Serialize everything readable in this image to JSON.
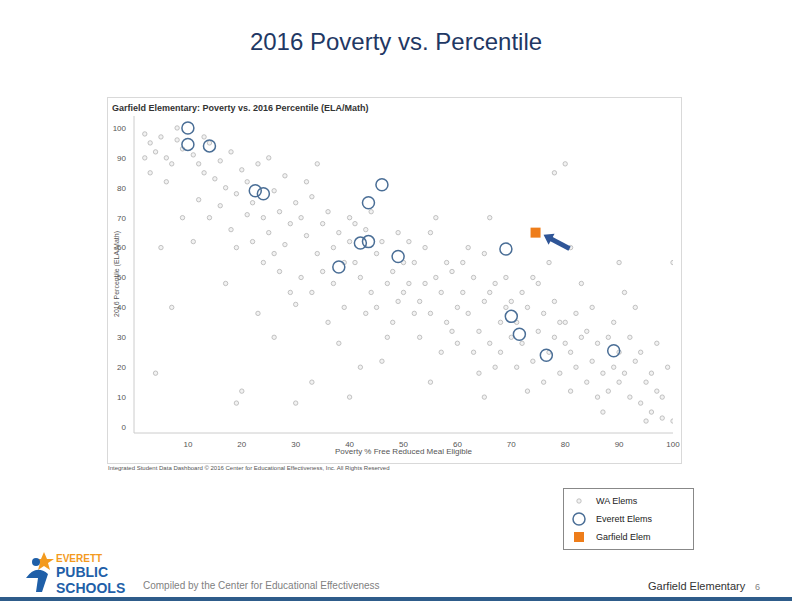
{
  "slide_title": "2016 Poverty vs. Percentile",
  "chart_data": {
    "type": "scatter",
    "title": "Garfield Elementary: Poverty vs. 2016 Percentile (ELA/Math)",
    "x_label": "Poverty % Free Reduced Meal Eligible",
    "y_label": "2016 Percentile (ELA/Math)",
    "source": "Integrated Student Data Dashboard © 2016 Center for Educational Effectiveness, Inc. All Rights Reserved",
    "xlim": [
      0,
      100
    ],
    "xticks": [
      10,
      20,
      30,
      40,
      50,
      60,
      70,
      80,
      90,
      100
    ],
    "ylim": [
      -2,
      104
    ],
    "yticks": [
      0,
      10,
      20,
      30,
      40,
      50,
      60,
      70,
      80,
      90,
      100
    ],
    "grid": false,
    "legend": "lower right",
    "series": [
      {
        "name": "WA Elems",
        "color": "#b4b4b4",
        "marker": "dot",
        "x": [
          2,
          3,
          4,
          5,
          6,
          7,
          8,
          9,
          3,
          6,
          8,
          2,
          5,
          9,
          7,
          4,
          11,
          12,
          13,
          14,
          15,
          16,
          17,
          18,
          19,
          12,
          14,
          16,
          18,
          20,
          13,
          19,
          11,
          17,
          20,
          19,
          21,
          22,
          23,
          24,
          25,
          26,
          27,
          28,
          29,
          30,
          22,
          24,
          26,
          28,
          21,
          25,
          27,
          29,
          23,
          26,
          30,
          31,
          32,
          33,
          34,
          35,
          36,
          37,
          38,
          39,
          40,
          31,
          33,
          35,
          37,
          39,
          32,
          34,
          36,
          38,
          40,
          33,
          30,
          41,
          42,
          43,
          44,
          45,
          46,
          47,
          48,
          49,
          50,
          41,
          43,
          45,
          47,
          49,
          44,
          46,
          48,
          50,
          42,
          40,
          51,
          52,
          53,
          54,
          55,
          56,
          57,
          58,
          59,
          60,
          51,
          53,
          55,
          57,
          59,
          52,
          54,
          56,
          58,
          60,
          55,
          61,
          62,
          63,
          64,
          65,
          66,
          67,
          68,
          69,
          70,
          61,
          63,
          65,
          67,
          69,
          62,
          64,
          66,
          68,
          70,
          66,
          65,
          71,
          72,
          73,
          74,
          75,
          76,
          77,
          78,
          79,
          80,
          72,
          74,
          76,
          78,
          80,
          71,
          73,
          75,
          77,
          79,
          78,
          80,
          81,
          81,
          82,
          83,
          84,
          85,
          86,
          87,
          88,
          89,
          90,
          82,
          84,
          86,
          88,
          90,
          83,
          85,
          87,
          89,
          81,
          90,
          91,
          92,
          93,
          94,
          95,
          96,
          97,
          98,
          99,
          100,
          92,
          94,
          96,
          98,
          93,
          95,
          97,
          100,
          91
        ],
        "values": [
          98,
          95,
          92,
          97,
          90,
          88,
          96,
          93,
          85,
          82,
          100,
          90,
          60,
          70,
          40,
          18,
          91,
          88,
          85,
          95,
          83,
          89,
          80,
          92,
          78,
          76,
          70,
          74,
          66,
          86,
          97,
          60,
          62,
          48,
          12,
          8,
          82,
          75,
          88,
          70,
          65,
          79,
          72,
          84,
          68,
          75,
          62,
          55,
          58,
          61,
          71,
          90,
          52,
          45,
          38,
          30,
          41,
          70,
          64,
          77,
          58,
          68,
          72,
          60,
          65,
          55,
          62,
          50,
          45,
          52,
          48,
          40,
          82,
          88,
          35,
          28,
          70,
          15,
          8,
          55,
          50,
          66,
          45,
          58,
          62,
          48,
          52,
          42,
          55,
          68,
          38,
          40,
          30,
          65,
          72,
          22,
          35,
          45,
          20,
          10,
          48,
          55,
          42,
          60,
          38,
          50,
          45,
          35,
          52,
          40,
          62,
          30,
          65,
          25,
          32,
          38,
          48,
          70,
          55,
          28,
          15,
          45,
          38,
          50,
          32,
          42,
          28,
          48,
          35,
          40,
          30,
          55,
          25,
          58,
          20,
          50,
          60,
          18,
          45,
          25,
          42,
          70,
          10,
          35,
          28,
          40,
          22,
          32,
          38,
          25,
          30,
          18,
          28,
          45,
          50,
          15,
          42,
          35,
          20,
          12,
          48,
          55,
          35,
          85,
          88,
          60,
          25,
          20,
          30,
          15,
          22,
          28,
          18,
          12,
          20,
          25,
          38,
          32,
          10,
          30,
          15,
          48,
          40,
          5,
          35,
          12,
          55,
          18,
          10,
          22,
          8,
          15,
          5,
          12,
          3,
          20,
          2,
          30,
          25,
          18,
          10,
          40,
          2,
          28,
          55,
          45
        ]
      },
      {
        "name": "Everett Elems",
        "color": "#4a6e96",
        "marker": "circle",
        "x": [
          10,
          10,
          14,
          22.5,
          24,
          46,
          43.5,
          42,
          43.5,
          38,
          49,
          69,
          70,
          71.5,
          76.5,
          89
        ],
        "values": [
          100,
          94.5,
          94,
          79,
          78,
          81,
          75,
          61.5,
          62,
          53.5,
          57,
          59.5,
          37,
          31,
          24,
          25.5
        ]
      },
      {
        "name": "Garfield Elem",
        "color": "#ee7d1a",
        "marker": "square",
        "x": [
          74.5
        ],
        "values": [
          65
        ]
      }
    ]
  },
  "footer": {
    "logo": [
      "EVERETT",
      "PUBLIC",
      "SCHOOLS"
    ],
    "compiled_by": "Compiled by the Center for Educational Effectiveness",
    "school": "Garfield Elementary",
    "page": 6
  }
}
